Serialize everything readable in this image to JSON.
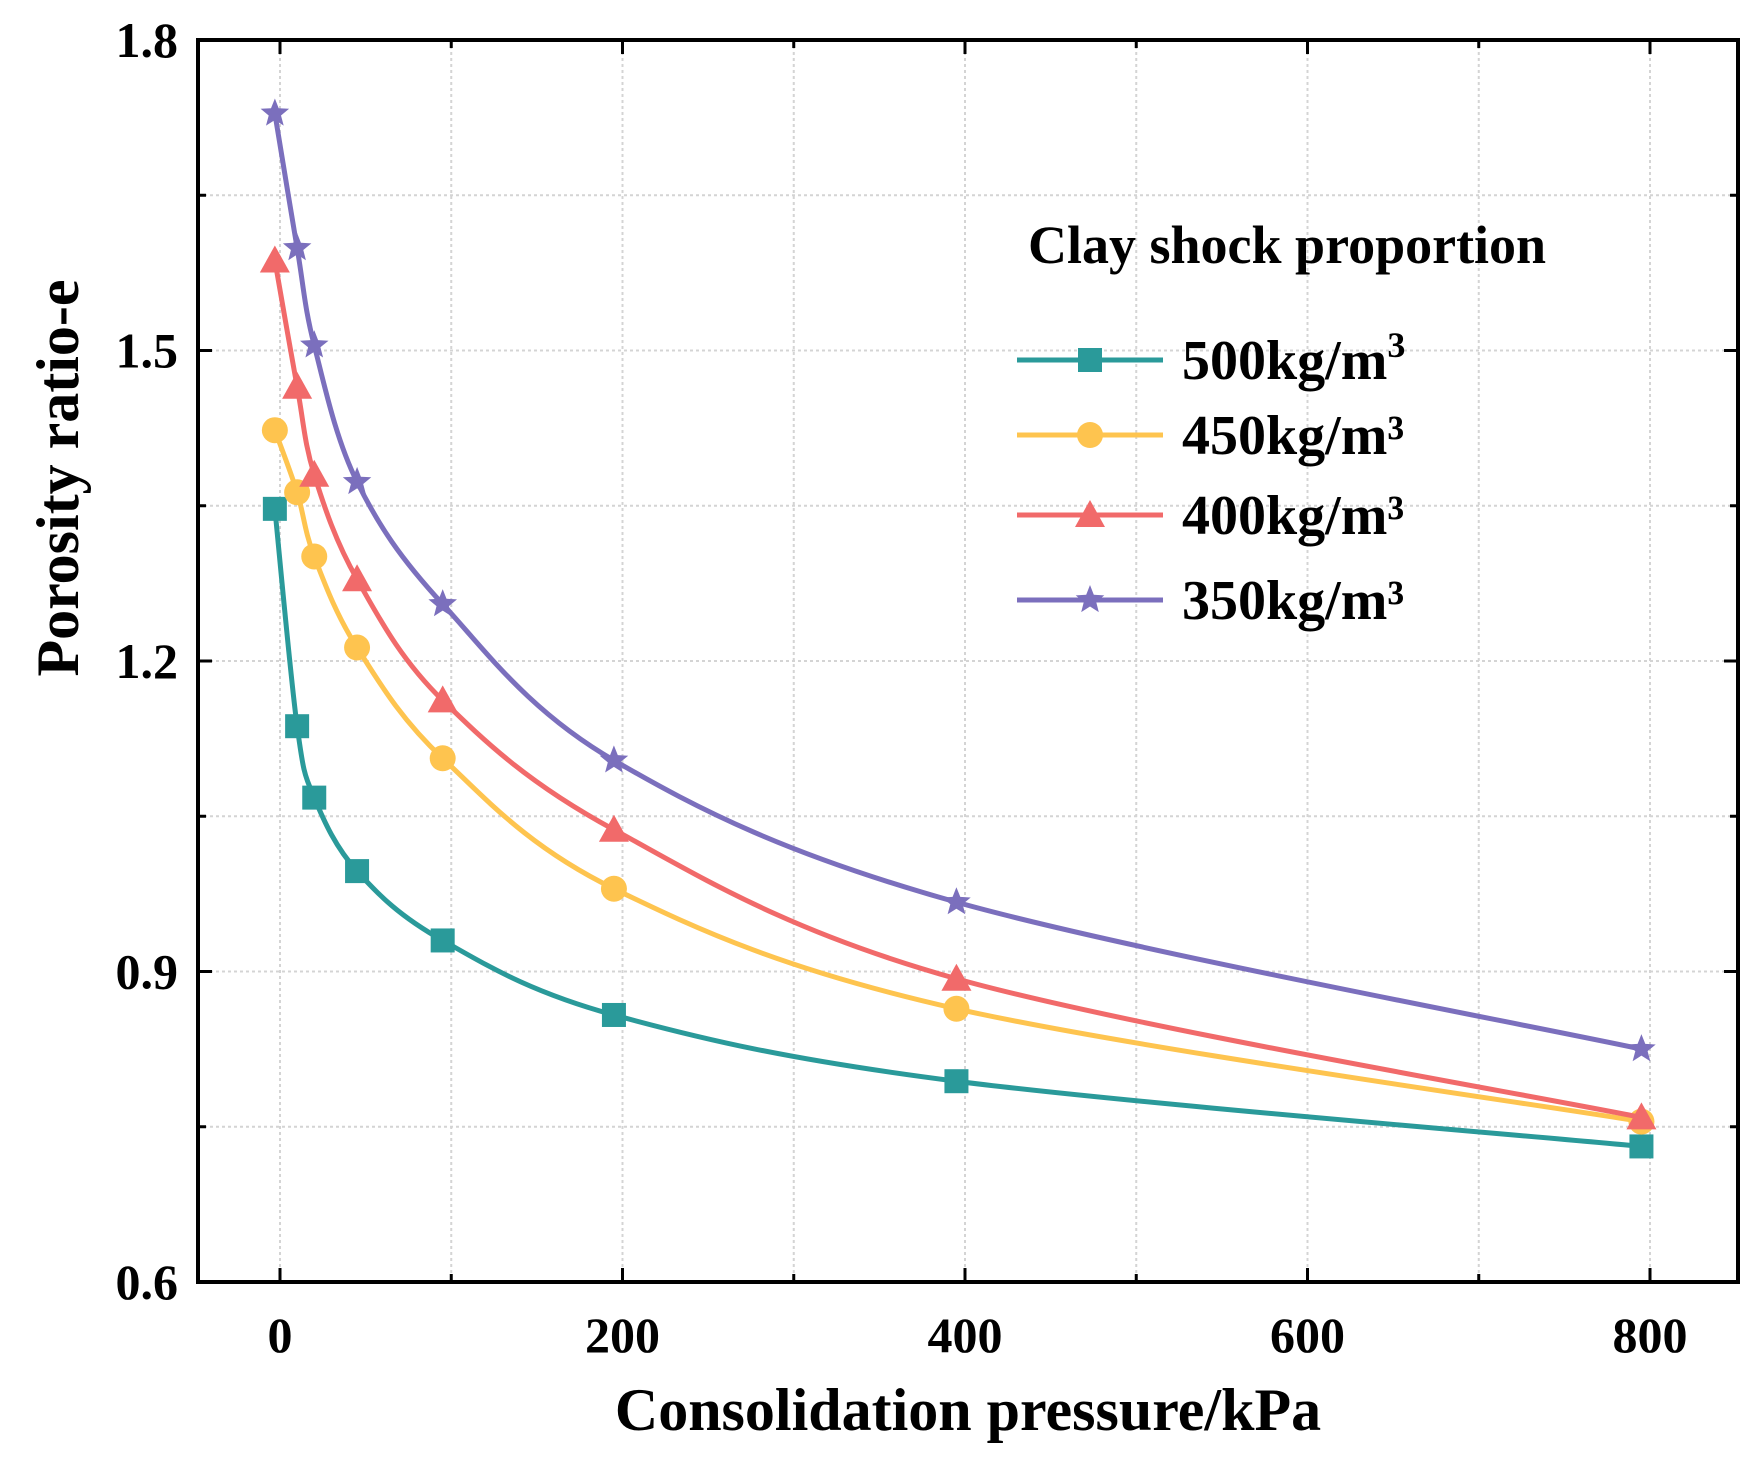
{
  "chart_data": {
    "type": "line",
    "title": "",
    "xlabel": "Consolidation pressure/kPa",
    "ylabel": "Porosity ratio-e",
    "xlim": [
      -50,
      850
    ],
    "ylim": [
      0.6,
      1.8
    ],
    "x_ticks": [
      0,
      200,
      400,
      600,
      800
    ],
    "x_tick_labels": [
      "0",
      "200",
      "400",
      "600",
      "800"
    ],
    "y_ticks": [
      0.6,
      0.9,
      1.2,
      1.5,
      1.8
    ],
    "y_tick_labels": [
      "0.6",
      "0.9",
      "1.2",
      "1.5",
      "1.8"
    ],
    "grid": true,
    "legend_title": "Clay shock proportion",
    "legend_position": "top-right",
    "series": [
      {
        "name": "500kg/m",
        "name_suffix": "3",
        "color": "#2a9a9a",
        "marker": "square",
        "x": [
          -3,
          10,
          20,
          45,
          95,
          195,
          395,
          795
        ],
        "y": [
          1.347,
          1.137,
          1.068,
          0.997,
          0.93,
          0.858,
          0.794,
          0.731
        ]
      },
      {
        "name": "450kg/m³",
        "name_suffix": "",
        "color": "#fec44f",
        "marker": "circle",
        "x": [
          -3,
          10,
          20,
          45,
          95,
          195,
          395,
          795
        ],
        "y": [
          1.423,
          1.363,
          1.301,
          1.213,
          1.106,
          0.98,
          0.864,
          0.755
        ]
      },
      {
        "name": "400kg/m³",
        "name_suffix": "",
        "color": "#f16a6a",
        "marker": "triangle",
        "x": [
          -3,
          10,
          20,
          45,
          95,
          195,
          395,
          795
        ],
        "y": [
          1.587,
          1.465,
          1.38,
          1.279,
          1.162,
          1.037,
          0.893,
          0.759
        ]
      },
      {
        "name": "350kg/m³",
        "name_suffix": "",
        "color": "#7b6fbd",
        "marker": "star",
        "x": [
          -3,
          10,
          20,
          45,
          95,
          195,
          395,
          795
        ],
        "y": [
          1.729,
          1.599,
          1.505,
          1.373,
          1.255,
          1.104,
          0.967,
          0.825
        ]
      }
    ]
  }
}
